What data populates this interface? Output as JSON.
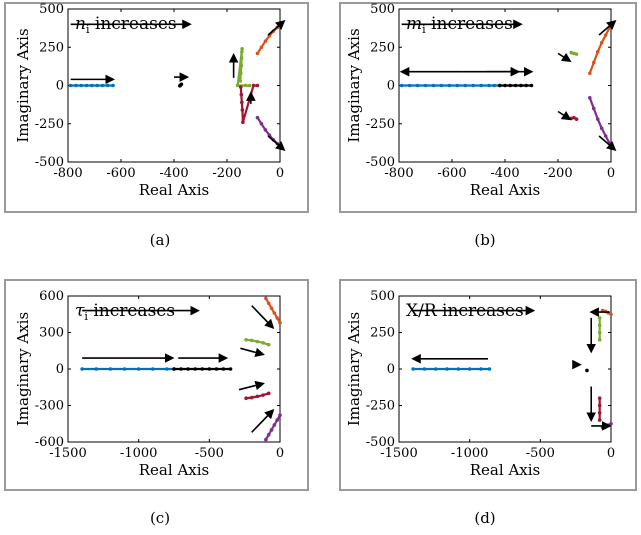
{
  "arrow_color": "#000000",
  "chart_data": [
    {
      "type": "scatter",
      "panel": "(a)",
      "title": "n_i increases",
      "title_parts": {
        "main": "n",
        "sub": "i",
        "rest": " increases"
      },
      "xlabel": "Real Axis",
      "ylabel": "Imaginary Axis",
      "xlim": [
        -800,
        0
      ],
      "ylim": [
        -500,
        500
      ],
      "xticks": [
        -800,
        -600,
        -400,
        -200,
        0
      ],
      "xtick_labels": [
        "-800",
        "-600",
        "-400",
        "-200",
        "0"
      ],
      "yticks": [
        500,
        250,
        0,
        -250,
        -500
      ],
      "ytick_labels": [
        "500",
        "250",
        "0",
        "-250",
        "-500"
      ],
      "series": [
        {
          "color": "#0072BD",
          "x": [
            -790,
            -770,
            -750,
            -730,
            -710,
            -690,
            -670,
            -650,
            -630
          ],
          "y": [
            0,
            0,
            0,
            0,
            0,
            0,
            0,
            0,
            0
          ]
        },
        {
          "color": "#000000",
          "x": [
            -378,
            -375,
            -372
          ],
          "y": [
            -2,
            3,
            8
          ]
        },
        {
          "color": "#D95319",
          "x": [
            -85,
            -70,
            -55,
            -40,
            -25,
            -10,
            0
          ],
          "y": [
            210,
            250,
            290,
            325,
            355,
            380,
            400
          ]
        },
        {
          "color": "#77AC30",
          "x": [
            -150,
            -148,
            -146,
            -145,
            -144,
            -143,
            -160,
            -130,
            -115
          ],
          "y": [
            30,
            80,
            130,
            180,
            220,
            240,
            0,
            0,
            0
          ]
        },
        {
          "color": "#A2142F",
          "x": [
            -148,
            -146,
            -144,
            -142,
            -140,
            -100,
            -85
          ],
          "y": [
            -10,
            -60,
            -110,
            -160,
            -240,
            0,
            0
          ]
        },
        {
          "color": "#7E2F8E",
          "x": [
            -85,
            -70,
            -55,
            -40,
            -25,
            -10,
            0
          ],
          "y": [
            -210,
            -250,
            -290,
            -325,
            -355,
            -380,
            -400
          ]
        }
      ],
      "arrows": [
        {
          "x1": -790,
          "y1": 400,
          "x2": -340,
          "y2": 400
        },
        {
          "x1": -790,
          "y1": 40,
          "x2": -630,
          "y2": 40
        },
        {
          "x1": -400,
          "y1": 55,
          "x2": -350,
          "y2": 55
        },
        {
          "x1": -175,
          "y1": 50,
          "x2": -175,
          "y2": 200
        },
        {
          "x1": -110,
          "y1": -120,
          "x2": -110,
          "y2": -50
        },
        {
          "x1": -45,
          "y1": 330,
          "x2": 15,
          "y2": 420
        },
        {
          "x1": -45,
          "y1": -330,
          "x2": 15,
          "y2": -420
        }
      ]
    },
    {
      "type": "scatter",
      "panel": "(b)",
      "title": "m_i increases",
      "title_parts": {
        "main": "m",
        "sub": "i",
        "rest": " increases"
      },
      "xlabel": "Real Axis",
      "ylabel": "Imaginary Axis",
      "xlim": [
        -800,
        0
      ],
      "ylim": [
        -500,
        500
      ],
      "xticks": [
        -800,
        -600,
        -400,
        -200,
        0
      ],
      "xtick_labels": [
        "-800",
        "-600",
        "-400",
        "-200",
        "0"
      ],
      "yticks": [
        500,
        250,
        0,
        -250,
        -500
      ],
      "ytick_labels": [
        "500",
        "250",
        "0",
        "-250",
        "-500"
      ],
      "series": [
        {
          "color": "#0072BD",
          "x": [
            -790,
            -760,
            -730,
            -700,
            -670,
            -640,
            -610,
            -580,
            -550,
            -520,
            -490,
            -460,
            -440,
            -420
          ],
          "y": [
            0,
            0,
            0,
            0,
            0,
            0,
            0,
            0,
            0,
            0,
            0,
            0,
            0,
            0
          ]
        },
        {
          "color": "#000000",
          "x": [
            -420,
            -400,
            -380,
            -360,
            -340,
            -320,
            -300
          ],
          "y": [
            0,
            0,
            0,
            0,
            0,
            0,
            0
          ]
        },
        {
          "color": "#D95319",
          "x": [
            -80,
            -65,
            -50,
            -35,
            -20,
            -5,
            0
          ],
          "y": [
            80,
            150,
            220,
            280,
            330,
            380,
            400
          ]
        },
        {
          "color": "#77AC30",
          "x": [
            -150,
            -140,
            -130
          ],
          "y": [
            215,
            210,
            205
          ]
        },
        {
          "color": "#A2142F",
          "x": [
            -150,
            -140,
            -130
          ],
          "y": [
            -215,
            -210,
            -220
          ]
        },
        {
          "color": "#7E2F8E",
          "x": [
            -80,
            -65,
            -50,
            -35,
            -20,
            -5,
            0
          ],
          "y": [
            -80,
            -150,
            -220,
            -280,
            -330,
            -380,
            -400
          ]
        }
      ],
      "arrows": [
        {
          "x1": -790,
          "y1": 400,
          "x2": -340,
          "y2": 400
        },
        {
          "x1": -560,
          "y1": 90,
          "x2": -790,
          "y2": 90
        },
        {
          "x1": -560,
          "y1": 90,
          "x2": -350,
          "y2": 90
        },
        {
          "x1": -470,
          "y1": 90,
          "x2": -300,
          "y2": 90
        },
        {
          "x1": -200,
          "y1": 210,
          "x2": -155,
          "y2": 160
        },
        {
          "x1": -200,
          "y1": -170,
          "x2": -155,
          "y2": -220
        },
        {
          "x1": -45,
          "y1": 330,
          "x2": 15,
          "y2": 420
        },
        {
          "x1": -45,
          "y1": -330,
          "x2": 15,
          "y2": -420
        }
      ]
    },
    {
      "type": "scatter",
      "panel": "(c)",
      "title": "τ_i increases",
      "title_parts": {
        "main": "τ",
        "sub": "i",
        "rest": " increases"
      },
      "xlabel": "Real Axis",
      "ylabel": "Imaginary Axis",
      "xlim": [
        -1500,
        0
      ],
      "ylim": [
        -600,
        600
      ],
      "xticks": [
        -1500,
        -1000,
        -500,
        0
      ],
      "xtick_labels": [
        "-1500",
        "-1000",
        "-500",
        "0"
      ],
      "yticks": [
        600,
        300,
        0,
        -300,
        -600
      ],
      "ytick_labels": [
        "600",
        "300",
        "0",
        "-300",
        "-600"
      ],
      "series": [
        {
          "color": "#0072BD",
          "x": [
            -1400,
            -1300,
            -1200,
            -1100,
            -1000,
            -900,
            -800,
            -750
          ],
          "y": [
            0,
            0,
            0,
            0,
            0,
            0,
            0,
            0
          ]
        },
        {
          "color": "#000000",
          "x": [
            -750,
            -700,
            -650,
            -600,
            -550,
            -500,
            -450,
            -400,
            -350
          ],
          "y": [
            0,
            0,
            0,
            0,
            0,
            0,
            0,
            0,
            0
          ]
        },
        {
          "color": "#D95319",
          "x": [
            -100,
            -80,
            -60,
            -40,
            -20,
            0
          ],
          "y": [
            580,
            540,
            500,
            460,
            420,
            380
          ]
        },
        {
          "color": "#77AC30",
          "x": [
            -240,
            -200,
            -160,
            -120,
            -80
          ],
          "y": [
            240,
            235,
            225,
            215,
            200
          ]
        },
        {
          "color": "#A2142F",
          "x": [
            -240,
            -200,
            -160,
            -120,
            -80
          ],
          "y": [
            -240,
            -235,
            -225,
            -215,
            -200
          ]
        },
        {
          "color": "#7E2F8E",
          "x": [
            -100,
            -80,
            -60,
            -40,
            -20,
            0
          ],
          "y": [
            -580,
            -540,
            -500,
            -460,
            -420,
            -380
          ]
        }
      ],
      "arrows": [
        {
          "x1": -1400,
          "y1": 480,
          "x2": -580,
          "y2": 480
        },
        {
          "x1": -1400,
          "y1": 90,
          "x2": -760,
          "y2": 90
        },
        {
          "x1": -720,
          "y1": 90,
          "x2": -380,
          "y2": 90
        },
        {
          "x1": -280,
          "y1": 170,
          "x2": -120,
          "y2": 120
        },
        {
          "x1": -290,
          "y1": -170,
          "x2": -120,
          "y2": -120
        },
        {
          "x1": -200,
          "y1": 520,
          "x2": -50,
          "y2": 340
        },
        {
          "x1": -200,
          "y1": -520,
          "x2": -50,
          "y2": -340
        }
      ]
    },
    {
      "type": "scatter",
      "panel": "(d)",
      "title": "X/R increases",
      "title_parts": {
        "main": "X/R",
        "sub": "",
        "rest": " increases"
      },
      "xlabel": "Real Axis",
      "ylabel": "Imaginary Axis",
      "xlim": [
        -1500,
        0
      ],
      "ylim": [
        -500,
        500
      ],
      "xticks": [
        -1500,
        -1000,
        -500,
        0
      ],
      "xtick_labels": [
        "-1500",
        "-1000",
        "-500",
        "0"
      ],
      "yticks": [
        500,
        250,
        0,
        -250,
        -500
      ],
      "ytick_labels": [
        "500",
        "250",
        "0",
        "-250",
        "-500"
      ],
      "series": [
        {
          "color": "#0072BD",
          "x": [
            -1400,
            -1320,
            -1240,
            -1160,
            -1080,
            -1000,
            -920,
            -860
          ],
          "y": [
            0,
            0,
            0,
            0,
            0,
            0,
            0,
            0
          ]
        },
        {
          "color": "#000000",
          "x": [
            -170
          ],
          "y": [
            -10
          ]
        },
        {
          "color": "#D95319",
          "x": [
            -60,
            -40,
            -20,
            0
          ],
          "y": [
            400,
            395,
            385,
            375
          ]
        },
        {
          "color": "#77AC30",
          "x": [
            -80,
            -80,
            -80,
            -80
          ],
          "y": [
            350,
            300,
            250,
            200
          ]
        },
        {
          "color": "#A2142F",
          "x": [
            -80,
            -80,
            -80,
            -80
          ],
          "y": [
            -200,
            -250,
            -300,
            -350
          ]
        },
        {
          "color": "#7E2F8E",
          "x": [
            -60,
            -40,
            -20,
            0
          ],
          "y": [
            -400,
            -395,
            -385,
            -375
          ]
        }
      ],
      "arrows": [
        {
          "x1": -1400,
          "y1": 400,
          "x2": -550,
          "y2": 400
        },
        {
          "x1": -870,
          "y1": 70,
          "x2": -1400,
          "y2": 70
        },
        {
          "x1": -260,
          "y1": 30,
          "x2": -220,
          "y2": 30
        },
        {
          "x1": -10,
          "y1": 390,
          "x2": -140,
          "y2": 390
        },
        {
          "x1": -140,
          "y1": 350,
          "x2": -140,
          "y2": 120
        },
        {
          "x1": -140,
          "y1": -120,
          "x2": -140,
          "y2": -350
        },
        {
          "x1": -140,
          "y1": -390,
          "x2": -10,
          "y2": -390
        }
      ]
    }
  ]
}
